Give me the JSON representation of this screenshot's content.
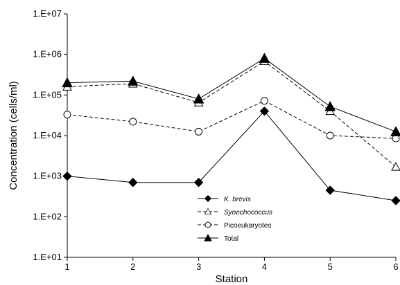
{
  "chart_data": {
    "type": "line",
    "xlabel": "Station",
    "ylabel": "Concentration (cells/ml)",
    "x": [
      1,
      2,
      3,
      4,
      5,
      6
    ],
    "xlim": [
      1,
      6
    ],
    "ylim": [
      10,
      10000000
    ],
    "yscale": "log",
    "y_tick_labels": [
      "1.E+01",
      "1.E+02",
      "1.E+03",
      "1.E+04",
      "1.E+05",
      "1.E+06",
      "1.E+07"
    ],
    "x_tick_labels": [
      "1",
      "2",
      "3",
      "4",
      "5",
      "6"
    ],
    "grid": false,
    "legend_position": "lower-center",
    "series": [
      {
        "name": "K. brevis",
        "italic": true,
        "marker": "diamond-filled",
        "line": "solid",
        "values": [
          1000,
          700,
          700,
          40000,
          450,
          250
        ]
      },
      {
        "name": "Synechococcus",
        "italic": true,
        "marker": "triangle-open",
        "line": "dashed",
        "values": [
          160000,
          190000,
          65000,
          680000,
          40000,
          1700
        ]
      },
      {
        "name": "Picoeukaryotes",
        "italic": false,
        "marker": "circle-open",
        "line": "dashed",
        "values": [
          33000,
          22000,
          12500,
          72000,
          10000,
          8500
        ]
      },
      {
        "name": "Total",
        "italic": false,
        "marker": "triangle-filled",
        "line": "solid",
        "values": [
          200000,
          220000,
          80000,
          800000,
          52000,
          12500
        ]
      }
    ]
  }
}
